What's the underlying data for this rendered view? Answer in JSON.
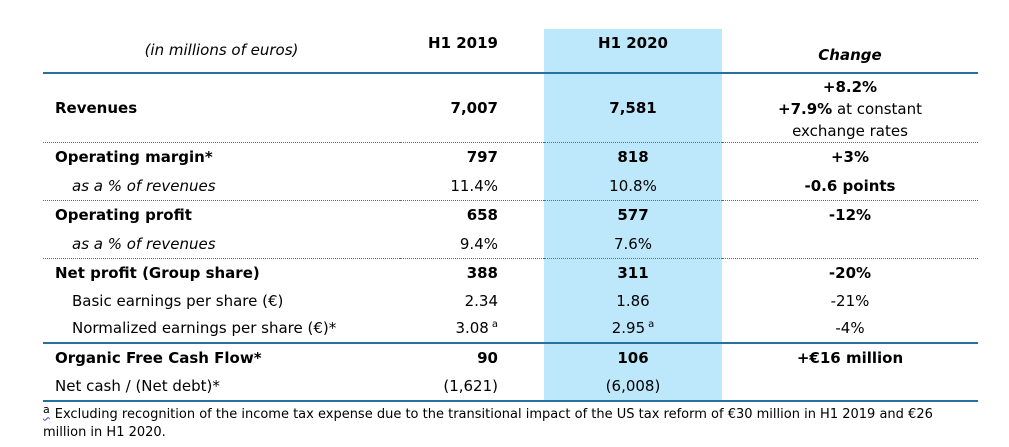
{
  "table": {
    "unit_label": "(in millions of euros)",
    "col_2019": "H1 2019",
    "col_2020": "H1 2020",
    "col_change": "Change",
    "rows": [
      {
        "label": "Revenues",
        "h1_2019": "7,007",
        "h1_2020": "7,581",
        "change_line1": "+8.2%",
        "change_line2_bold": "+7.9%",
        "change_line2_rest": " at constant",
        "change_line3": "exchange rates"
      },
      {
        "label": "Operating margin*",
        "h1_2019": "797",
        "h1_2020": "818",
        "change": "+3%"
      },
      {
        "label": "as a % of revenues",
        "h1_2019": "11.4%",
        "h1_2020": "10.8%",
        "change": "-0.6 points"
      },
      {
        "label": "Operating profit",
        "h1_2019": "658",
        "h1_2020": "577",
        "change": "-12%"
      },
      {
        "label": "as a % of revenues",
        "h1_2019": "9.4%",
        "h1_2020": "7.6%",
        "change": ""
      },
      {
        "label": "Net profit (Group share)",
        "h1_2019": "388",
        "h1_2020": "311",
        "change": "-20%"
      },
      {
        "label": "Basic earnings per share (€)",
        "h1_2019": "2.34",
        "h1_2020": "1.86",
        "change": "-21%"
      },
      {
        "label": "Normalized earnings per share (€)*",
        "h1_2019": "3.08",
        "h1_2019_sup": "a",
        "h1_2020": "2.95",
        "h1_2020_sup": "a",
        "change": "-4%"
      },
      {
        "label": "Organic Free Cash Flow*",
        "h1_2019": "90",
        "h1_2020": "106",
        "change": "+€16 million"
      },
      {
        "label": "Net cash / (Net debt)*",
        "h1_2019": "(1,621)",
        "h1_2020": "(6,008)",
        "change": ""
      }
    ]
  },
  "footnote": {
    "marker": "a",
    "text": "Excluding recognition of the income tax expense due to the transitional impact of the US tax reform of €30 million in H1 2019 and €26 million in H1 2020."
  },
  "colors": {
    "highlight_band": "#BDE7FA",
    "solid_line": "#26719E",
    "dotted_line": "#2E8099",
    "squiggle": "#3C3CF0"
  }
}
